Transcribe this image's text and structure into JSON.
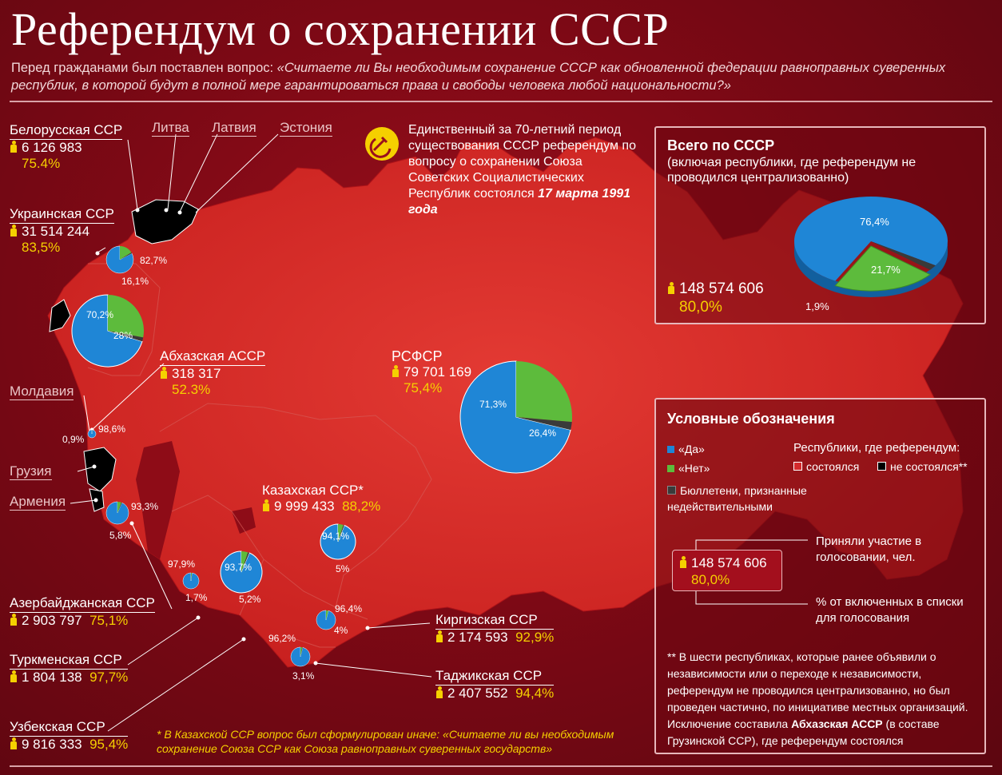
{
  "title": "Референдум о сохранении СССР",
  "subtitle_prefix": "Перед гражданами был поставлен вопрос: ",
  "subtitle_question": "«Считаете ли Вы необходимым сохранение СССР как обновленной федерации равноправных суверенных республик, в которой будут в полной мере гарантироваться права и свободы человека любой национальности?»",
  "intro_note_1": "Единственный за 70-летний период существования СССР референдум по вопросу о сохранении Союза Советских Социалистических Республик состоялся ",
  "intro_note_date": "17 марта 1991 года",
  "countries": {
    "lithuania": "Литва",
    "latvia": "Латвия",
    "estonia": "Эстония",
    "moldova": "Молдавия",
    "georgia": "Грузия",
    "armenia": "Армения"
  },
  "republics": [
    {
      "name": "Белорусская ССР",
      "voters": "6 126 983",
      "turnout": "75.4%"
    },
    {
      "name": "Украинская ССР",
      "voters": "31 514 244",
      "turnout": "83,5%"
    },
    {
      "name": "Абхазская АССР",
      "voters": "318 317",
      "turnout": "52.3%"
    },
    {
      "name": "РСФСР",
      "voters": "79 701 169",
      "turnout": "75,4%"
    },
    {
      "name": "Казахская ССР*",
      "voters": "9 999 433",
      "turnout": "88,2%"
    },
    {
      "name": "Азербайджанская ССР",
      "voters": "2 903 797",
      "turnout": "75,1%"
    },
    {
      "name": "Туркменская ССР",
      "voters": "1 804 138",
      "turnout": "97,7%"
    },
    {
      "name": "Узбекская ССР",
      "voters": "9 816 333",
      "turnout": "95,4%"
    },
    {
      "name": "Киргизская ССР",
      "voters": "2 174 593",
      "turnout": "92,9%"
    },
    {
      "name": "Таджикская ССР",
      "voters": "2 407 552",
      "turnout": "94,4%"
    }
  ],
  "chart_data": {
    "type": "pie",
    "colors": {
      "yes": "#1f86d6",
      "no": "#5dbb3c",
      "invalid": "#3a3a3a",
      "held": "#d42a2c",
      "not_held": "#000000"
    },
    "pies": [
      {
        "id": "belarus",
        "yes": 82.7,
        "no": 16.1,
        "yes_label": "82,7%",
        "no_label": "16,1%"
      },
      {
        "id": "ukraine",
        "yes": 70.2,
        "no": 28.0,
        "yes_label": "70,2%",
        "no_label": "28%"
      },
      {
        "id": "abkhazia",
        "yes": 98.6,
        "no": 0.9,
        "yes_label": "98,6%",
        "no_label": "0,9%"
      },
      {
        "id": "rsfsr",
        "yes": 71.3,
        "no": 26.4,
        "yes_label": "71,3%",
        "no_label": "26,4%"
      },
      {
        "id": "kazakhstan",
        "yes": 94.1,
        "no": 5.0,
        "yes_label": "94,1%",
        "no_label": "5%"
      },
      {
        "id": "azerbaijan",
        "yes": 93.3,
        "no": 5.8,
        "yes_label": "93,3%",
        "no_label": "5,8%"
      },
      {
        "id": "turkmenistan",
        "yes": 97.9,
        "no": 1.7,
        "yes_label": "97,9%",
        "no_label": "1,7%"
      },
      {
        "id": "uzbekistan",
        "yes": 93.7,
        "no": 5.2,
        "yes_label": "93,7%",
        "no_label": "5,2%"
      },
      {
        "id": "kyrgyzstan",
        "yes": 96.4,
        "no": 4.0,
        "yes_label": "96,4%",
        "no_label": "4%"
      },
      {
        "id": "tajikistan",
        "yes": 96.2,
        "no": 3.1,
        "yes_label": "96,2%",
        "no_label": "3,1%"
      },
      {
        "id": "total",
        "yes": 76.4,
        "no": 21.7,
        "invalid": 1.9,
        "yes_label": "76,4%",
        "no_label": "21,7%",
        "invalid_label": "1,9%"
      }
    ]
  },
  "total_box": {
    "title": "Всего по СССР",
    "subtitle": "(включая республики, где референдум не проводился централизованно)",
    "voters": "148 574 606",
    "turnout": "80,0%"
  },
  "legend": {
    "title": "Условные обозначения",
    "yes": "«Да»",
    "no": "«Нет»",
    "invalid": "Бюллетени, признанные недействительными",
    "republics_title": "Республики, где референдум:",
    "held": "состоялся",
    "not_held": "не состоялся**",
    "example_voters": "148 574 606",
    "example_turnout": "80,0%",
    "participated": "Приняли участие в голосовании, чел.",
    "percent_included": "% от включенных в списки для голосования",
    "footnote_1": "** В шести республиках, которые ранее объявили о независимости или о переходе к независимости, референдум не проводился централизованно, но был проведен частично, по инициативе местных организаций. Исключение составила ",
    "footnote_bold": "Абхазская АССР",
    "footnote_2": " (в составе Грузинской ССР), где референдум состоялся"
  },
  "kz_note": "* В Казахской ССР вопрос был сформулирован иначе: «Считаете ли вы необходимым сохранение Союза ССР как Союза равноправных суверенных государств»"
}
